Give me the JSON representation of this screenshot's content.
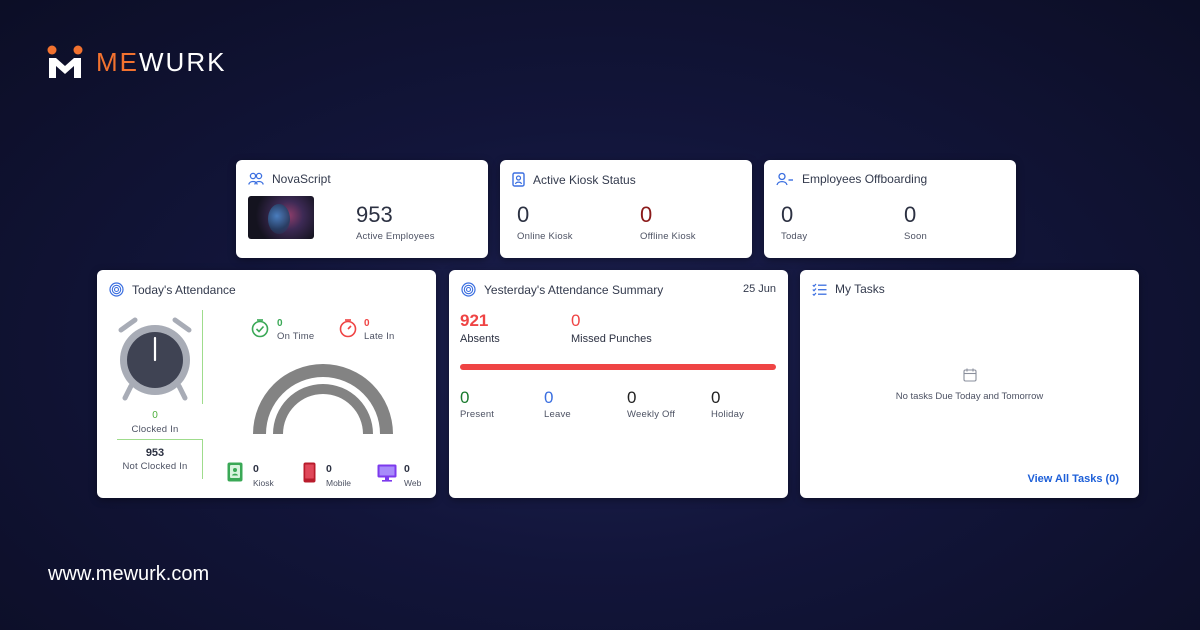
{
  "brand": {
    "logo_me": "ME",
    "logo_wurk": "WURK",
    "website": "www.mewurk.com",
    "accent": "#f2722f"
  },
  "nova": {
    "title": "NovaScript",
    "icon": "users-icon",
    "active_employees": "953",
    "active_employees_label": "Active Employees"
  },
  "kiosk": {
    "title": "Active Kiosk Status",
    "icon": "kiosk-icon",
    "online_value": "0",
    "online_label": "Online Kiosk",
    "offline_value": "0",
    "offline_label": "Offline Kiosk"
  },
  "offboarding": {
    "title": "Employees Offboarding",
    "icon": "user-minus-icon",
    "today_value": "0",
    "today_label": "Today",
    "soon_value": "0",
    "soon_label": "Soon"
  },
  "today_attendance": {
    "title": "Today's Attendance",
    "icon": "fingerprint-icon",
    "clocked_in_value": "0",
    "clocked_in_label": "Clocked In",
    "not_clocked_in_value": "953",
    "not_clocked_in_label": "Not Clocked In",
    "on_time_value": "0",
    "on_time_label": "On Time",
    "late_in_value": "0",
    "late_in_label": "Late In",
    "kiosk_value": "0",
    "kiosk_label": "Kiosk",
    "mobile_value": "0",
    "mobile_label": "Mobile",
    "web_value": "0",
    "web_label": "Web"
  },
  "yesterday": {
    "title": "Yesterday's Attendance Summary",
    "date": "25 Jun",
    "absents_value": "921",
    "absents_label": "Absents",
    "missed_value": "0",
    "missed_label": "Missed Punches",
    "present_value": "0",
    "present_label": "Present",
    "leave_value": "0",
    "leave_label": "Leave",
    "weekly_off_value": "0",
    "weekly_off_label": "Weekly Off",
    "holiday_value": "0",
    "holiday_label": "Holiday"
  },
  "tasks": {
    "title": "My Tasks",
    "empty_message": "No tasks Due Today and Tomorrow",
    "view_all": "View All Tasks (0)"
  }
}
